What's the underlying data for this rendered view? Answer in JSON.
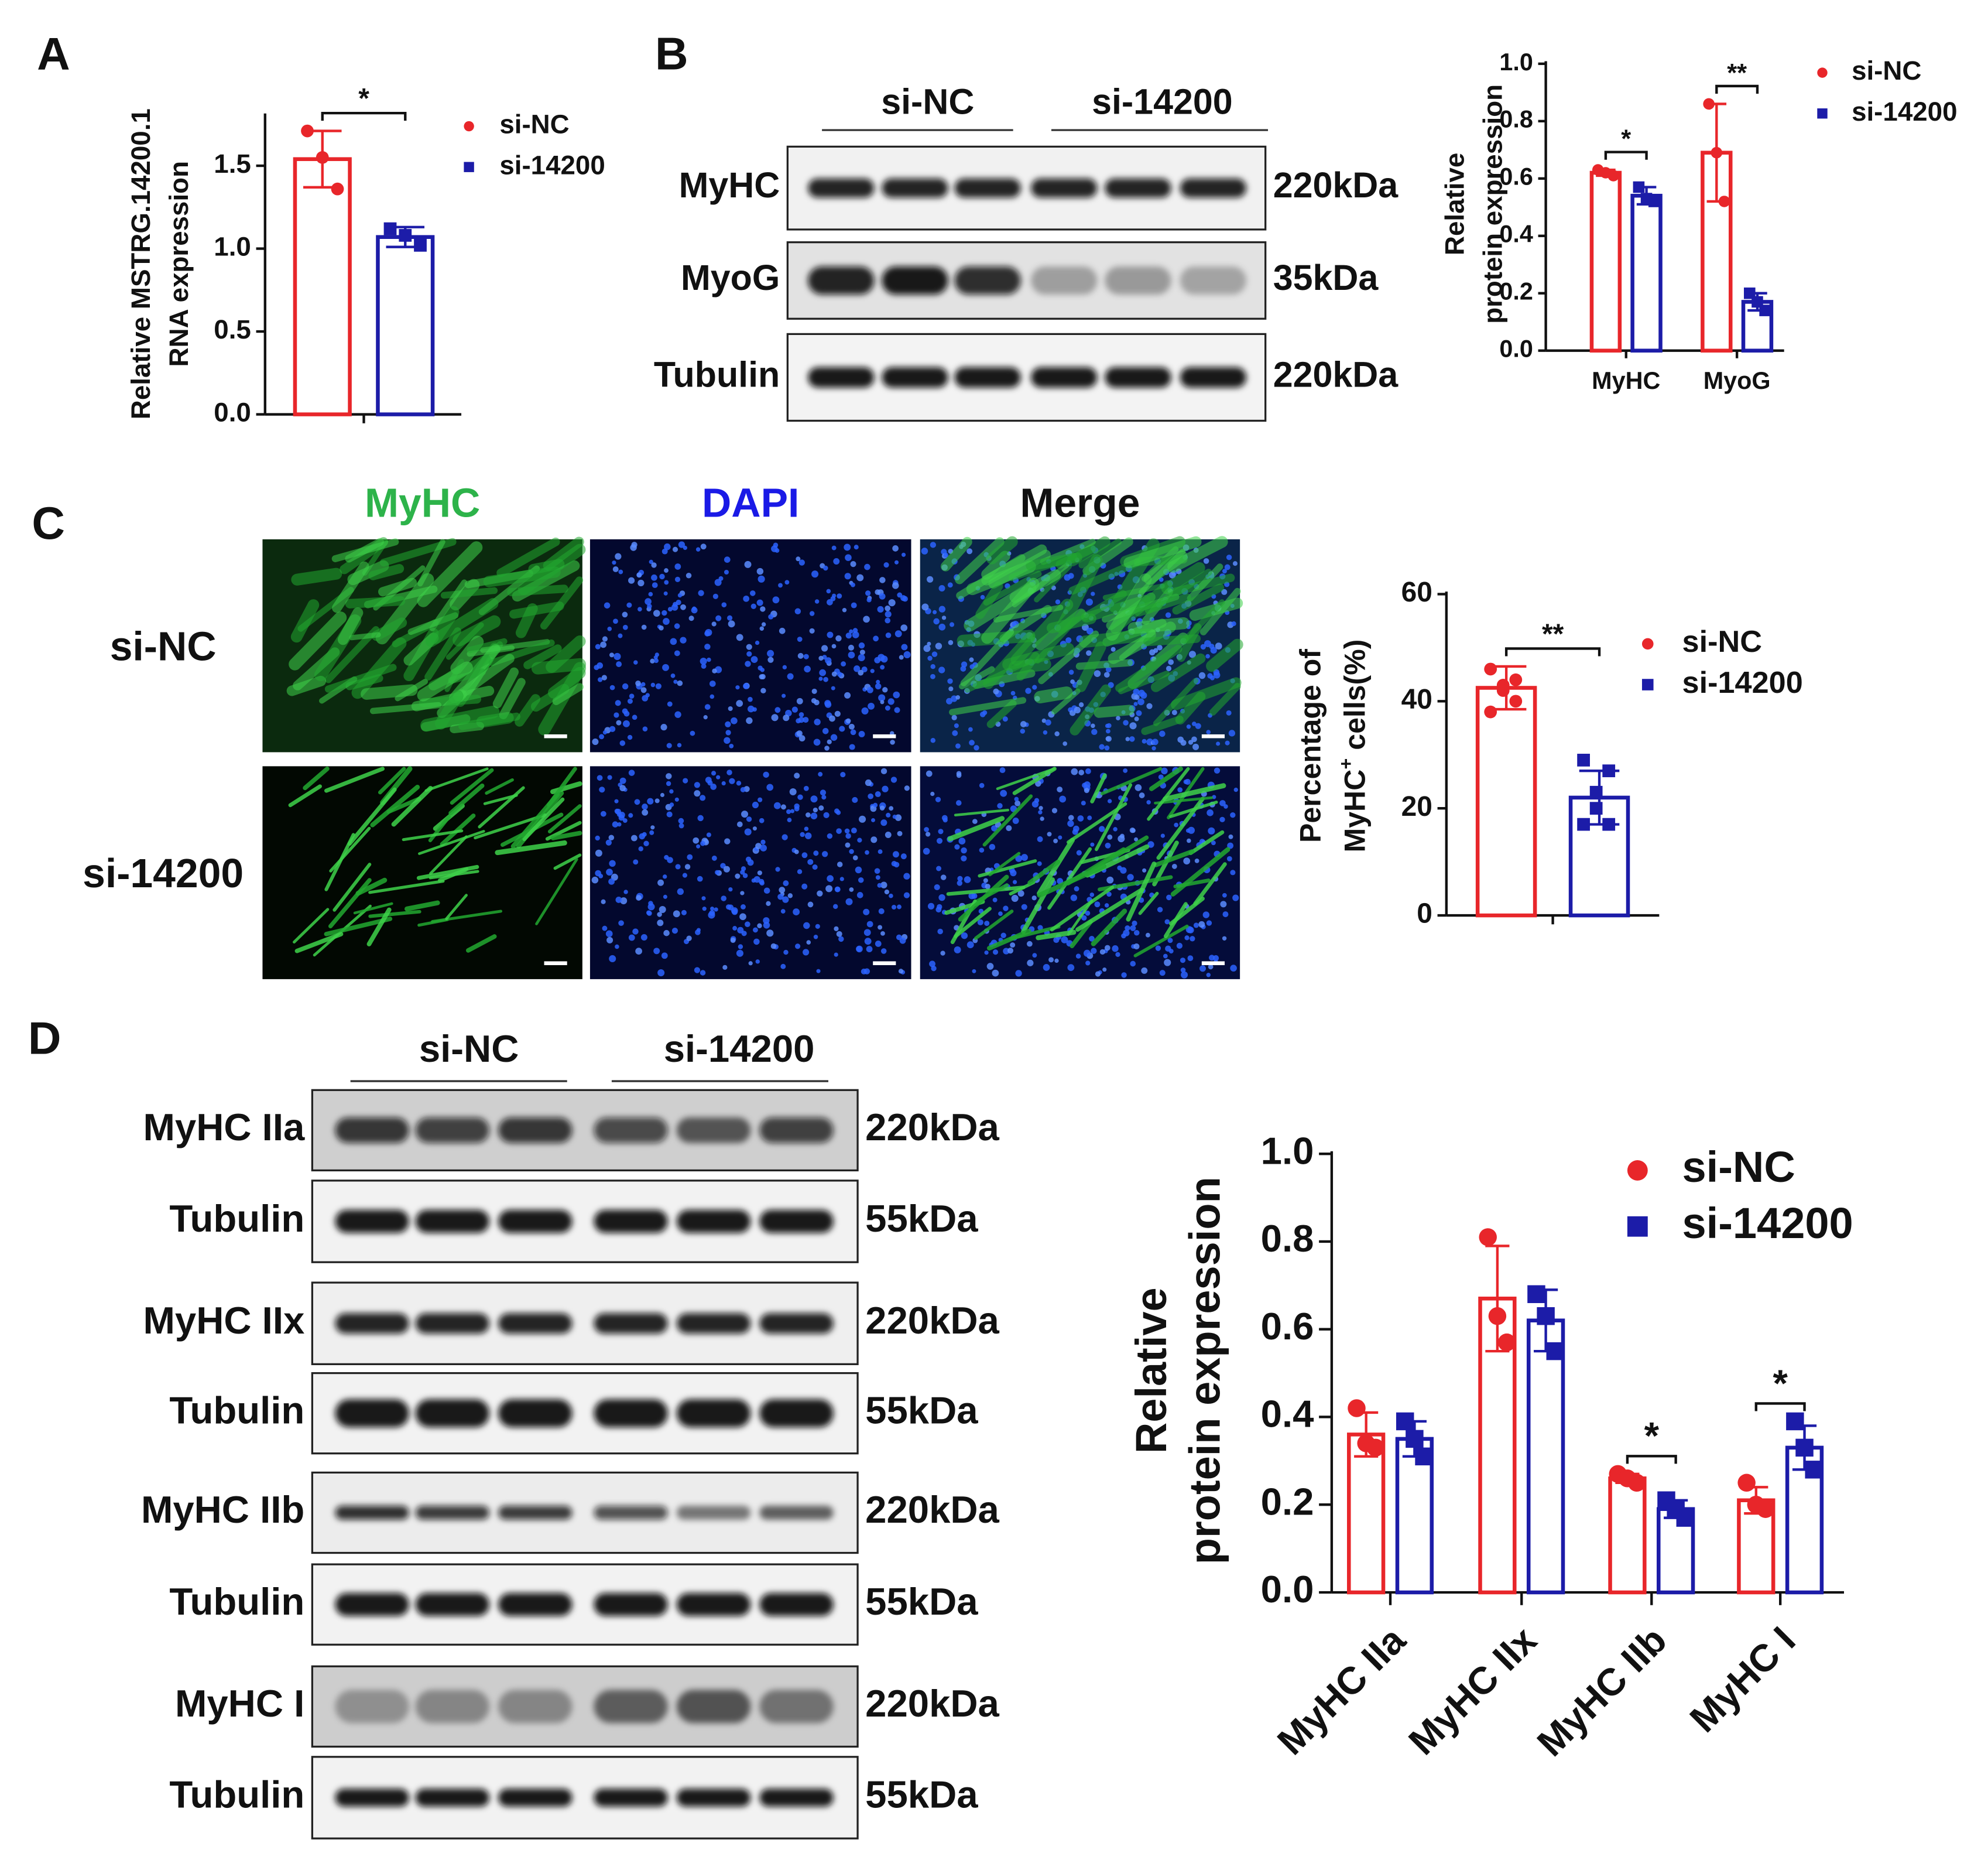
{
  "panel_labels": [
    "A",
    "B",
    "C",
    "D"
  ],
  "blot_B": {
    "groups": [
      "si-NC",
      "si-14200"
    ],
    "rows": [
      {
        "protein": "MyHC",
        "size": "220kDa"
      },
      {
        "protein": "MyoG",
        "size": "35kDa"
      },
      {
        "protein": "Tubulin",
        "size": "220kDa"
      }
    ]
  },
  "images_C": {
    "channels": [
      "MyHC",
      "DAPI",
      "Merge"
    ],
    "conditions": [
      "si-NC",
      "si-14200"
    ]
  },
  "blot_D": {
    "groups": [
      "si-NC",
      "si-14200"
    ],
    "rows": [
      {
        "protein": "MyHC IIa",
        "size": "220kDa"
      },
      {
        "protein": "Tubulin",
        "size": "55kDa"
      },
      {
        "protein": "MyHC IIx",
        "size": "220kDa"
      },
      {
        "protein": "Tubulin",
        "size": "55kDa"
      },
      {
        "protein": "MyHC IIb",
        "size": "220kDa"
      },
      {
        "protein": "Tubulin",
        "size": "55kDa"
      },
      {
        "protein": "MyHC I",
        "size": "220kDa"
      },
      {
        "protein": "Tubulin",
        "size": "55kDa"
      }
    ]
  },
  "chart_data": [
    {
      "type": "bar",
      "ylabel": [
        "Relative MSTRG.14200.1",
        "RNA expression"
      ],
      "categories": [
        null
      ],
      "ylim": [
        0,
        1.8
      ],
      "yticks": [
        {
          "value": 0,
          "label": "0.0"
        },
        {
          "value": 0.5,
          "label": "0.5"
        },
        {
          "value": 1,
          "label": "1.0"
        },
        {
          "value": 1.5,
          "label": "1.5"
        }
      ],
      "series": [
        {
          "name": "si-NC",
          "color": "#e8262a",
          "marker": "circle",
          "values": [
            1.54
          ],
          "errors": [
            0.17
          ],
          "points": [
            [
              1.71,
              1.55,
              1.36
            ]
          ]
        },
        {
          "name": "si-14200",
          "color": "#1c1ca8",
          "marker": "square",
          "values": [
            1.07
          ],
          "errors": [
            0.06
          ],
          "points": [
            [
              1.12,
              1.08,
              1.02
            ]
          ]
        }
      ],
      "significance": [
        "*"
      ]
    },
    {
      "type": "bar",
      "ylabel": [
        "Relative",
        "protein expression"
      ],
      "categories": [
        "MyHC",
        "MyoG"
      ],
      "ylim": [
        0,
        1
      ],
      "yticks": [
        {
          "value": 0,
          "label": "0.0"
        },
        {
          "value": 0.2,
          "label": "0.2"
        },
        {
          "value": 0.4,
          "label": "0.4"
        },
        {
          "value": 0.6,
          "label": "0.6"
        },
        {
          "value": 0.8,
          "label": "0.8"
        },
        {
          "value": 1,
          "label": "1.0"
        }
      ],
      "series": [
        {
          "name": "si-NC",
          "color": "#e8262a",
          "marker": "circle",
          "values": [
            0.62,
            0.69
          ],
          "errors": [
            0.01,
            0.17
          ],
          "points": [
            [
              0.63,
              0.62,
              0.61
            ],
            [
              0.86,
              0.69,
              0.52
            ]
          ]
        },
        {
          "name": "si-14200",
          "color": "#1c1ca8",
          "marker": "square",
          "values": [
            0.54,
            0.17
          ],
          "errors": [
            0.03,
            0.03
          ],
          "points": [
            [
              0.57,
              0.53,
              0.52
            ],
            [
              0.2,
              0.17,
              0.14
            ]
          ]
        }
      ],
      "significance": [
        "*",
        "**"
      ]
    },
    {
      "type": "bar",
      "ylabel": [
        "Percentage of",
        "MyHC",
        "+",
        " cells(%)"
      ],
      "categories": [
        null
      ],
      "ylim": [
        0,
        60
      ],
      "yticks": [
        0,
        20,
        40,
        60
      ],
      "series": [
        {
          "name": "si-NC",
          "color": "#e8262a",
          "marker": "circle",
          "values": [
            42.5
          ],
          "errors": [
            4
          ],
          "points": [
            [
              46,
              44,
              43,
              42,
              40,
              38
            ]
          ]
        },
        {
          "name": "si-14200",
          "color": "#1c1ca8",
          "marker": "square",
          "values": [
            22
          ],
          "errors": [
            5
          ],
          "points": [
            [
              29,
              27,
              23,
              20,
              17,
              17
            ]
          ]
        }
      ],
      "significance": [
        "**"
      ]
    },
    {
      "type": "bar",
      "ylabel": [
        "Relative",
        "protein expression"
      ],
      "categories": [
        "MyHC IIa",
        "MyHC IIx",
        "MyHC IIb",
        "MyHC I"
      ],
      "ylim": [
        0,
        1
      ],
      "yticks": [
        {
          "value": 0,
          "label": "0.0"
        },
        {
          "value": 0.2,
          "label": "0.2"
        },
        {
          "value": 0.4,
          "label": "0.4"
        },
        {
          "value": 0.6,
          "label": "0.6"
        },
        {
          "value": 0.8,
          "label": "0.8"
        },
        {
          "value": 1,
          "label": "1.0"
        }
      ],
      "series": [
        {
          "name": "si-NC",
          "color": "#e8262a",
          "marker": "circle",
          "values": [
            0.36,
            0.67,
            0.26,
            0.21
          ],
          "errors": [
            0.05,
            0.12,
            0.01,
            0.03
          ],
          "points": [
            [
              0.42,
              0.34,
              0.33
            ],
            [
              0.81,
              0.63,
              0.57
            ],
            [
              0.27,
              0.26,
              0.25
            ],
            [
              0.25,
              0.2,
              0.19
            ]
          ]
        },
        {
          "name": "si-14200",
          "color": "#1c1ca8",
          "marker": "square",
          "values": [
            0.35,
            0.62,
            0.19,
            0.33
          ],
          "errors": [
            0.04,
            0.07,
            0.02,
            0.05
          ],
          "points": [
            [
              0.39,
              0.35,
              0.31
            ],
            [
              0.68,
              0.63,
              0.55
            ],
            [
              0.21,
              0.19,
              0.17
            ],
            [
              0.39,
              0.33,
              0.28
            ]
          ]
        }
      ],
      "significance": [
        null,
        null,
        "*",
        "*"
      ]
    }
  ]
}
